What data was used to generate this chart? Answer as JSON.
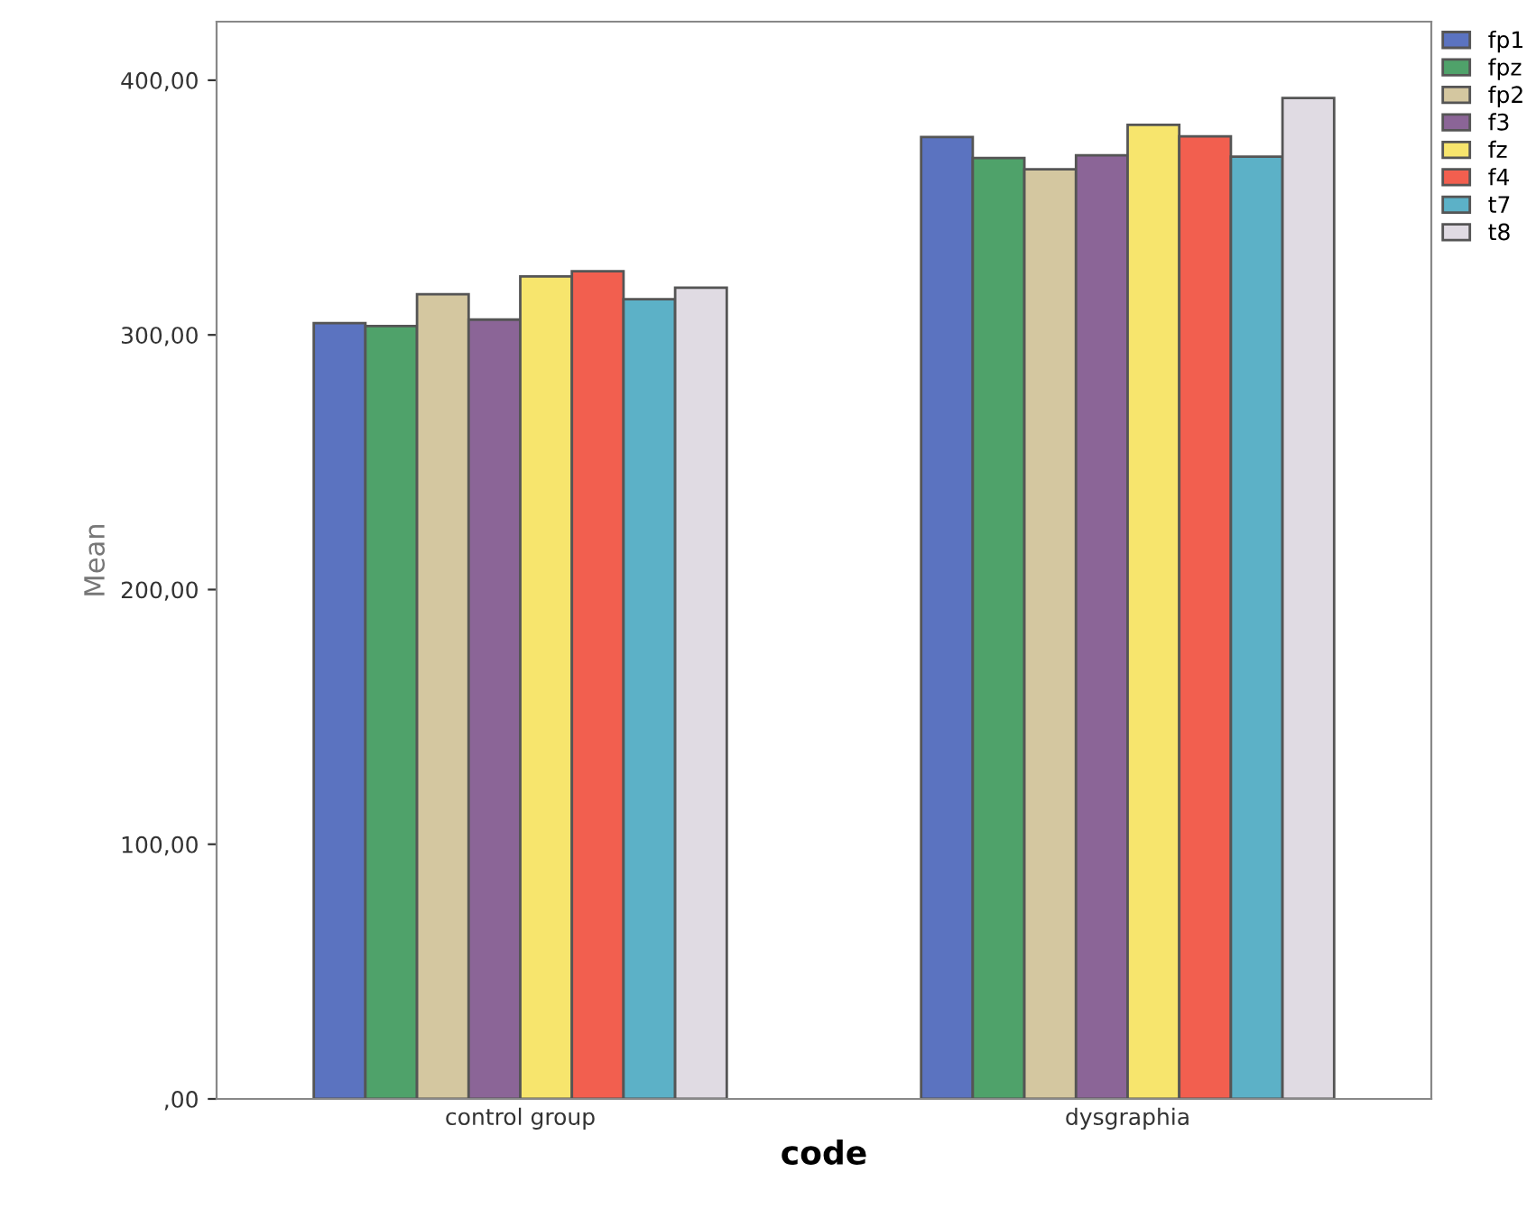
{
  "chart_data": {
    "type": "bar",
    "xlabel": "code",
    "ylabel": "Mean",
    "categories": [
      "control group",
      "dysgraphia"
    ],
    "series": [
      {
        "name": "fp1",
        "color": "#5b73c0",
        "values": [
          304.6,
          377.7
        ]
      },
      {
        "name": "fpz",
        "color": "#4fa26a",
        "values": [
          303.5,
          369.5
        ]
      },
      {
        "name": "fp2",
        "color": "#d4c7a0",
        "values": [
          316,
          365
        ]
      },
      {
        "name": "f3",
        "color": "#8b6597",
        "values": [
          306,
          370.5
        ]
      },
      {
        "name": "fz",
        "color": "#f7e56d",
        "values": [
          323,
          382.5
        ]
      },
      {
        "name": "f4",
        "color": "#f25f4f",
        "values": [
          325,
          378
        ]
      },
      {
        "name": "t7",
        "color": "#5cb1c7",
        "values": [
          314,
          370
        ]
      },
      {
        "name": "t8",
        "color": "#e0dbe3",
        "values": [
          318.5,
          393
        ]
      }
    ],
    "ylim": [
      0,
      423
    ],
    "yticks": [
      {
        "value": 0,
        "label": ",00"
      },
      {
        "value": 100,
        "label": "100,00"
      },
      {
        "value": 200,
        "label": "200,00"
      },
      {
        "value": 300,
        "label": "300,00"
      },
      {
        "value": 400,
        "label": "400,00"
      }
    ],
    "grid": false,
    "legend": "right"
  }
}
